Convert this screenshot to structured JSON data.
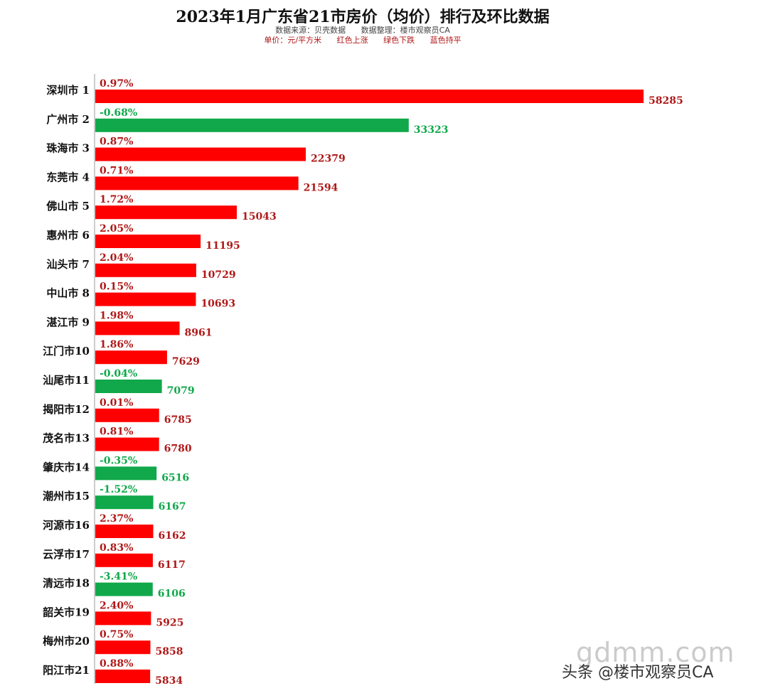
{
  "colors": {
    "up": "#ff0000",
    "down": "#10a84a",
    "up_text": "#b01818",
    "down_text": "#10a84a",
    "axis": "#9a9a9a"
  },
  "header": {
    "title": "2023年1月广东省21市房价（均价）排行及环比数据",
    "source": "数据来源：贝壳数据 数据整理：楼市观察员CA",
    "legend": "单价：元/平方米 红色上涨 绿色下跌 蓝色持平"
  },
  "watermark": {
    "site": "gdmm.com",
    "author": "头条 @楼市观察员CA"
  },
  "chart_data": {
    "type": "bar",
    "orientation": "horizontal",
    "title": "2023年1月广东省21市房价（均价）排行及环比数据",
    "xlabel": "",
    "ylabel": "",
    "grid": false,
    "xlim": [
      0,
      58285
    ],
    "categories": [
      "深圳市 1",
      "广州市 2",
      "珠海市 3",
      "东莞市 4",
      "佛山市 5",
      "惠州市 6",
      "汕头市 7",
      "中山市 8",
      "湛江市 9",
      "江门市10",
      "汕尾市11",
      "揭阳市12",
      "茂名市13",
      "肇庆市14",
      "潮州市15",
      "河源市16",
      "云浮市17",
      "清远市18",
      "韶关市19",
      "梅州市20",
      "阳江市21"
    ],
    "values": [
      58285,
      33323,
      22379,
      21594,
      15043,
      11195,
      10729,
      10693,
      8961,
      7629,
      7079,
      6785,
      6780,
      6516,
      6167,
      6162,
      6117,
      6106,
      5925,
      5858,
      5834
    ],
    "value_labels": [
      "58285",
      "33323",
      "22379",
      "21594",
      "15043",
      "11195",
      "10729",
      "10693",
      "8961",
      "7629",
      "7079",
      "6785",
      "6780",
      "6516",
      "6167",
      "6162",
      "6117",
      "6106",
      "5925",
      "5858",
      "5834"
    ],
    "mom_change_labels": [
      "0.97%",
      "-0.68%",
      "0.87%",
      "0.71%",
      "1.72%",
      "2.05%",
      "2.04%",
      "0.15%",
      "1.98%",
      "1.86%",
      "-0.04%",
      "0.01%",
      "0.81%",
      "-0.35%",
      "-1.52%",
      "2.37%",
      "0.83%",
      "-3.41%",
      "2.40%",
      "0.75%",
      "0.88%"
    ],
    "trend": [
      "up",
      "down",
      "up",
      "up",
      "up",
      "up",
      "up",
      "up",
      "up",
      "up",
      "down",
      "up",
      "up",
      "down",
      "down",
      "up",
      "up",
      "down",
      "up",
      "up",
      "up"
    ]
  }
}
